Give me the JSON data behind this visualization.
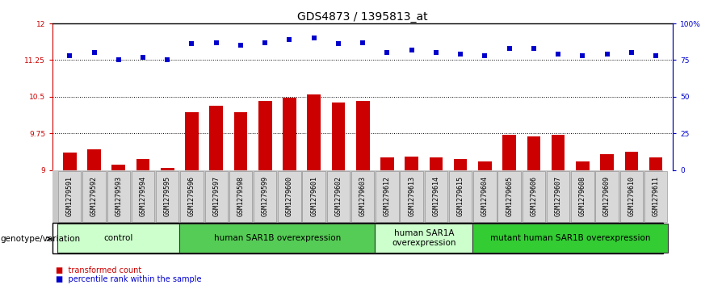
{
  "title": "GDS4873 / 1395813_at",
  "samples": [
    "GSM1279591",
    "GSM1279592",
    "GSM1279593",
    "GSM1279594",
    "GSM1279595",
    "GSM1279596",
    "GSM1279597",
    "GSM1279598",
    "GSM1279599",
    "GSM1279600",
    "GSM1279601",
    "GSM1279602",
    "GSM1279603",
    "GSM1279612",
    "GSM1279613",
    "GSM1279614",
    "GSM1279615",
    "GSM1279604",
    "GSM1279605",
    "GSM1279606",
    "GSM1279607",
    "GSM1279608",
    "GSM1279609",
    "GSM1279610",
    "GSM1279611"
  ],
  "bar_values": [
    9.35,
    9.42,
    9.1,
    9.22,
    9.05,
    10.18,
    10.32,
    10.18,
    10.42,
    10.48,
    10.55,
    10.38,
    10.42,
    9.25,
    9.28,
    9.26,
    9.23,
    9.17,
    9.72,
    9.68,
    9.72,
    9.17,
    9.32,
    9.38,
    9.25
  ],
  "dot_values": [
    78,
    80,
    75,
    77,
    75,
    86,
    87,
    85,
    87,
    89,
    90,
    86,
    87,
    80,
    82,
    80,
    79,
    78,
    83,
    83,
    79,
    78,
    79,
    80,
    78
  ],
  "bar_color": "#cc0000",
  "dot_color": "#0000cc",
  "ylim_left": [
    9.0,
    12.0
  ],
  "ylim_right": [
    0,
    100
  ],
  "yticks_left": [
    9.0,
    9.75,
    10.5,
    11.25,
    12.0
  ],
  "yticks_right": [
    0,
    25,
    50,
    75,
    100
  ],
  "ytick_labels_left": [
    "9",
    "9.75",
    "10.5",
    "11.25",
    "12"
  ],
  "ytick_labels_right": [
    "0",
    "25",
    "50",
    "75",
    "100%"
  ],
  "hlines": [
    9.75,
    10.5,
    11.25
  ],
  "groups": [
    {
      "label": "control",
      "start": 0,
      "end": 5,
      "color": "#ccffcc"
    },
    {
      "label": "human SAR1B overexpression",
      "start": 5,
      "end": 13,
      "color": "#55cc55"
    },
    {
      "label": "human SAR1A\noverexpression",
      "start": 13,
      "end": 17,
      "color": "#ccffcc"
    },
    {
      "label": "mutant human SAR1B overexpression",
      "start": 17,
      "end": 25,
      "color": "#33cc33"
    }
  ],
  "group_row_label": "genotype/variation",
  "legend_bar_label": "transformed count",
  "legend_dot_label": "percentile rank within the sample",
  "bar_width": 0.55,
  "dot_size": 22,
  "title_fontsize": 10,
  "tick_fontsize": 6.5,
  "group_fontsize": 7.5,
  "sample_fontsize": 6,
  "bar_color_left": "#cc0000",
  "dot_color_right": "#0000cc",
  "bg_color": "white",
  "sample_box_color": "#d0d0d0",
  "sample_box_edge": "#888888"
}
